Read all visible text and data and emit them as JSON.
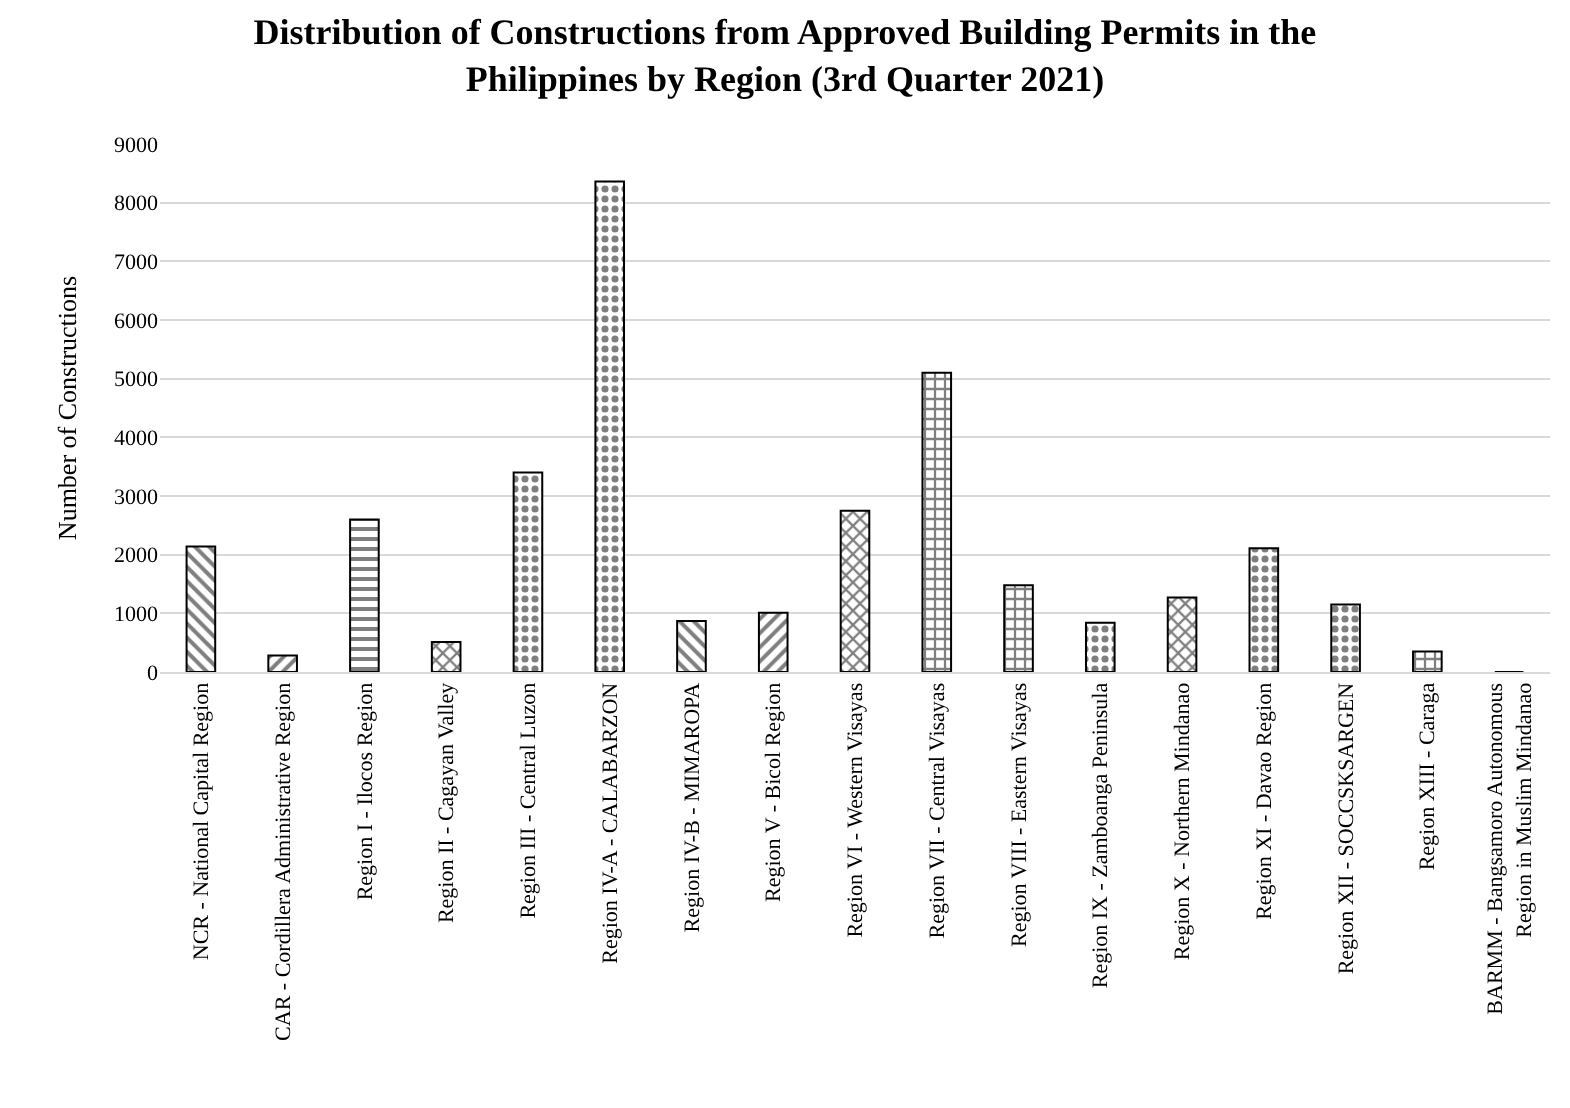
{
  "chart_data": {
    "type": "bar",
    "title": "Distribution of Constructions from Approved Building Permits in the Philippines by Region (3rd Quarter 2021)",
    "ylabel": "Number of Constructions",
    "categories": [
      "NCR - National Capital Region",
      "CAR - Cordillera Administrative Region",
      "Region I - Ilocos Region",
      "Region II - Cagayan Valley",
      "Region III - Central Luzon",
      "Region IV-A - CALABARZON",
      "Region IV-B - MIMAROPA",
      "Region V - Bicol Region",
      "Region VI - Western Visayas",
      "Region VII - Central Visayas",
      "Region VIII - Eastern Visayas",
      "Region IX - Zamboanga Peninsula",
      "Region X - Northern Mindanao",
      "Region XI - Davao Region",
      "Region XII - SOCCSKSARGEN",
      "Region XIII - Caraga",
      "BARMM - Bangsamoro Autonomous Region in Muslim Mindanao"
    ],
    "values": [
      2140,
      280,
      2600,
      510,
      3400,
      8360,
      870,
      1010,
      2750,
      5100,
      1480,
      840,
      1270,
      2110,
      1150,
      350,
      0
    ],
    "color": "#000000",
    "ylim": [
      0,
      9000
    ],
    "yticks": [
      0,
      1000,
      2000,
      3000,
      4000,
      5000,
      6000,
      7000,
      8000,
      9000
    ],
    "grid": "y"
  }
}
